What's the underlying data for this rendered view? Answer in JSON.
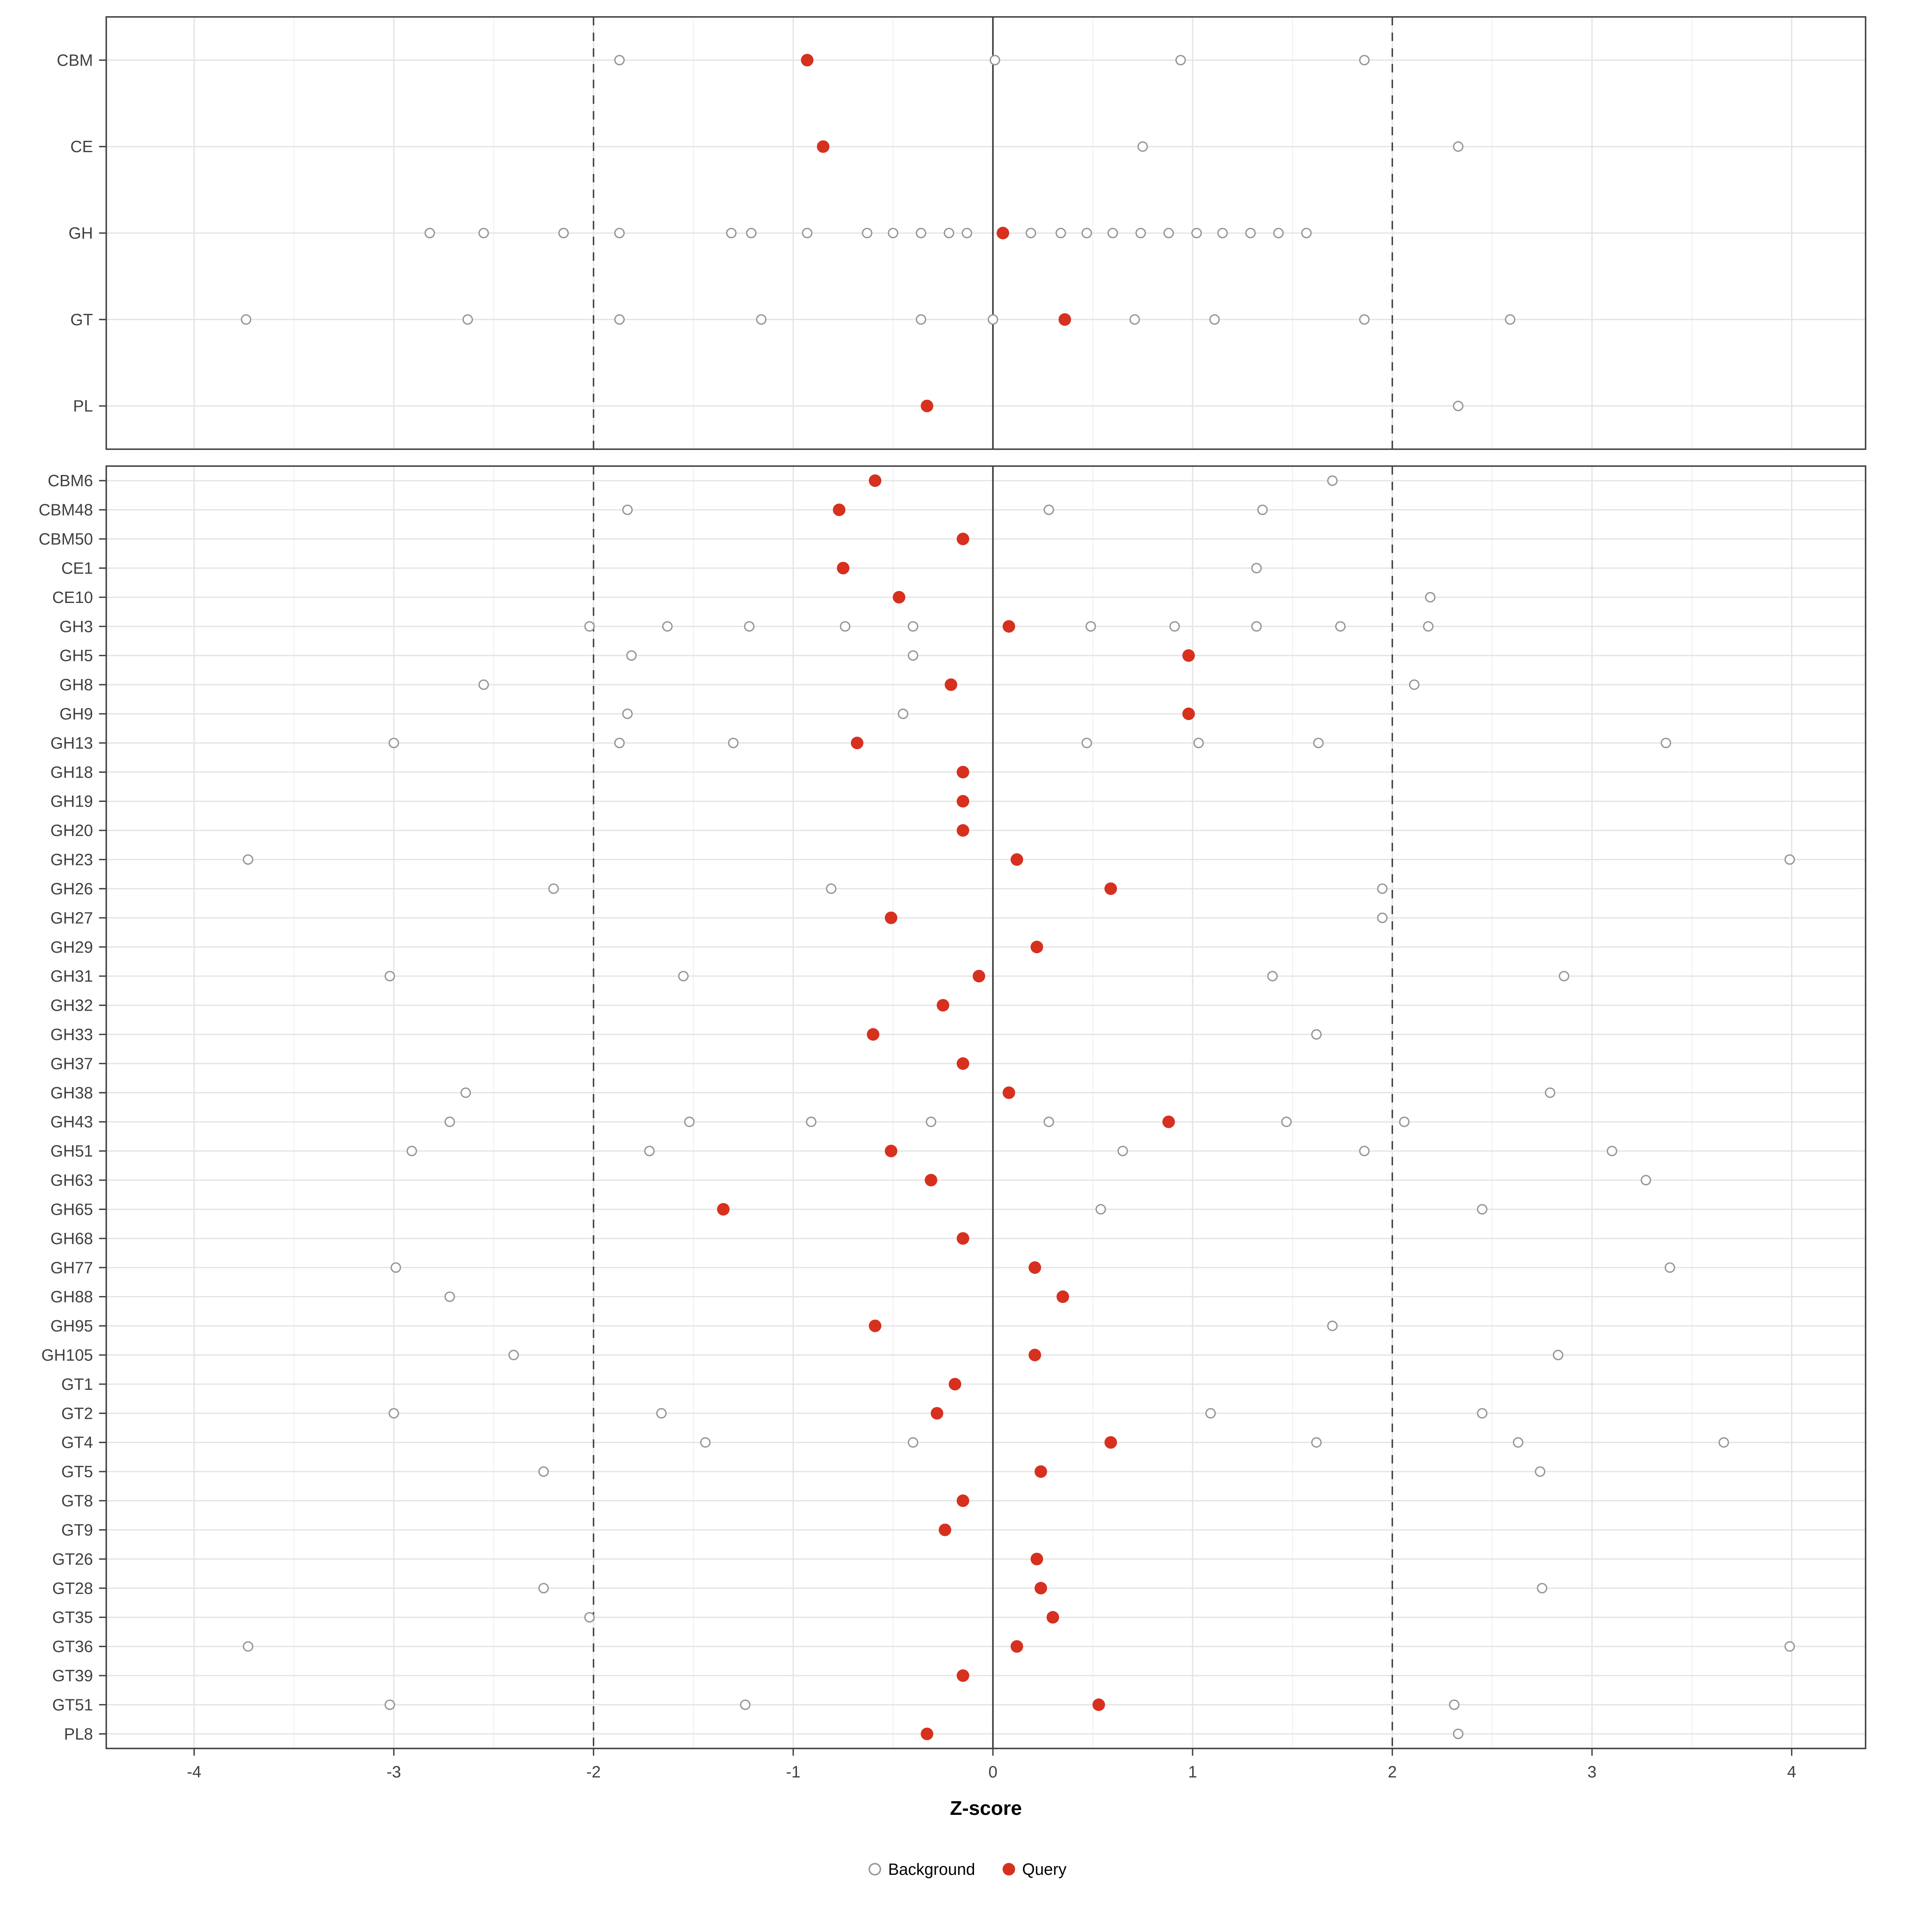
{
  "chart_data": {
    "type": "scatter",
    "title": "",
    "xlabel": "Z-score",
    "xlim": [
      -4.44,
      4.37
    ],
    "x_ticks": [
      -4,
      -3,
      -2,
      -1,
      0,
      1,
      2,
      3,
      4
    ],
    "vline_solid": 0,
    "vlines_dashed": [
      -2,
      2
    ],
    "legend": [
      {
        "label": "Background",
        "type": "open"
      },
      {
        "label": "Query",
        "type": "filled"
      }
    ],
    "colors": {
      "query": "#d7301f",
      "background_stroke": "#969696",
      "grid_major": "#e3e3e3",
      "grid_minor": "#f1f1f1",
      "panel_border": "#404040",
      "ref_line": "#3f3f3f",
      "tick_text": "#404040",
      "axis_title": "#000000"
    },
    "panels": [
      {
        "name": "top",
        "rows": [
          {
            "label": "CBM",
            "query": -0.93,
            "background": [
              -1.87,
              0.01,
              0.94,
              1.86
            ]
          },
          {
            "label": "CE",
            "query": -0.85,
            "background": [
              0.75,
              2.33
            ]
          },
          {
            "label": "GH",
            "query": 0.05,
            "background": [
              -2.82,
              -2.55,
              -2.15,
              -1.87,
              -1.31,
              -1.21,
              -0.93,
              -0.63,
              -0.5,
              -0.36,
              -0.22,
              -0.13,
              0.19,
              0.34,
              0.47,
              0.6,
              0.74,
              0.88,
              1.02,
              1.15,
              1.29,
              1.43,
              1.57
            ]
          },
          {
            "label": "GT",
            "query": 0.36,
            "background": [
              -3.74,
              -2.63,
              -1.87,
              -1.16,
              -0.36,
              0.0,
              0.71,
              1.11,
              1.86,
              2.59
            ]
          },
          {
            "label": "PL",
            "query": -0.33,
            "background": [
              2.33
            ]
          }
        ]
      },
      {
        "name": "bottom",
        "rows": [
          {
            "label": "CBM6",
            "query": -0.59,
            "background": [
              1.7
            ]
          },
          {
            "label": "CBM48",
            "query": -0.77,
            "background": [
              -1.83,
              0.28,
              1.35
            ]
          },
          {
            "label": "CBM50",
            "query": -0.15,
            "background": []
          },
          {
            "label": "CE1",
            "query": -0.75,
            "background": [
              1.32
            ]
          },
          {
            "label": "CE10",
            "query": -0.47,
            "background": [
              2.19
            ]
          },
          {
            "label": "GH3",
            "query": 0.08,
            "background": [
              -2.02,
              -1.63,
              -1.22,
              -0.74,
              -0.4,
              0.49,
              0.91,
              1.32,
              1.74,
              2.18
            ]
          },
          {
            "label": "GH5",
            "query": 0.98,
            "background": [
              -1.81,
              -0.4
            ]
          },
          {
            "label": "GH8",
            "query": -0.21,
            "background": [
              -2.55,
              2.11
            ]
          },
          {
            "label": "GH9",
            "query": 0.98,
            "background": [
              -1.83,
              -0.45
            ]
          },
          {
            "label": "GH13",
            "query": -0.68,
            "background": [
              -3.0,
              -1.87,
              -1.3,
              0.47,
              1.03,
              1.63,
              3.37
            ]
          },
          {
            "label": "GH18",
            "query": -0.15,
            "background": []
          },
          {
            "label": "GH19",
            "query": -0.15,
            "background": []
          },
          {
            "label": "GH20",
            "query": -0.15,
            "background": []
          },
          {
            "label": "GH23",
            "query": 0.12,
            "background": [
              -3.73,
              3.99
            ]
          },
          {
            "label": "GH26",
            "query": 0.59,
            "background": [
              -2.2,
              -0.81,
              1.95
            ]
          },
          {
            "label": "GH27",
            "query": -0.51,
            "background": [
              1.95
            ]
          },
          {
            "label": "GH29",
            "query": 0.22,
            "background": []
          },
          {
            "label": "GH31",
            "query": -0.07,
            "background": [
              -3.02,
              -1.55,
              1.4,
              2.86
            ]
          },
          {
            "label": "GH32",
            "query": -0.25,
            "background": []
          },
          {
            "label": "GH33",
            "query": -0.6,
            "background": [
              1.62
            ]
          },
          {
            "label": "GH37",
            "query": -0.15,
            "background": []
          },
          {
            "label": "GH38",
            "query": 0.08,
            "background": [
              -2.64,
              2.79
            ]
          },
          {
            "label": "GH43",
            "query": 0.88,
            "background": [
              -2.72,
              -1.52,
              -0.91,
              -0.31,
              0.28,
              1.47,
              2.06
            ]
          },
          {
            "label": "GH51",
            "query": -0.51,
            "background": [
              -2.91,
              -1.72,
              0.65,
              1.86,
              3.1
            ]
          },
          {
            "label": "GH63",
            "query": -0.31,
            "background": [
              3.27
            ]
          },
          {
            "label": "GH65",
            "query": -1.35,
            "background": [
              0.54,
              2.45
            ]
          },
          {
            "label": "GH68",
            "query": -0.15,
            "background": []
          },
          {
            "label": "GH77",
            "query": 0.21,
            "background": [
              -2.99,
              3.39
            ]
          },
          {
            "label": "GH88",
            "query": 0.35,
            "background": [
              -2.72
            ]
          },
          {
            "label": "GH95",
            "query": -0.59,
            "background": [
              1.7
            ]
          },
          {
            "label": "GH105",
            "query": 0.21,
            "background": [
              -2.4,
              2.83
            ]
          },
          {
            "label": "GT1",
            "query": -0.19,
            "background": []
          },
          {
            "label": "GT2",
            "query": -0.28,
            "background": [
              -3.0,
              -1.66,
              1.09,
              2.45
            ]
          },
          {
            "label": "GT4",
            "query": 0.59,
            "background": [
              -1.44,
              -0.4,
              1.62,
              2.63,
              3.66
            ]
          },
          {
            "label": "GT5",
            "query": 0.24,
            "background": [
              -2.25,
              2.74
            ]
          },
          {
            "label": "GT8",
            "query": -0.15,
            "background": []
          },
          {
            "label": "GT9",
            "query": -0.24,
            "background": []
          },
          {
            "label": "GT26",
            "query": 0.22,
            "background": []
          },
          {
            "label": "GT28",
            "query": 0.24,
            "background": [
              -2.25,
              2.75
            ]
          },
          {
            "label": "GT35",
            "query": 0.3,
            "background": [
              -2.02
            ]
          },
          {
            "label": "GT36",
            "query": 0.12,
            "background": [
              -3.73,
              3.99
            ]
          },
          {
            "label": "GT39",
            "query": -0.15,
            "background": []
          },
          {
            "label": "GT51",
            "query": 0.53,
            "background": [
              -3.02,
              -1.24,
              2.31
            ]
          },
          {
            "label": "PL8",
            "query": -0.33,
            "background": [
              2.33
            ]
          }
        ]
      }
    ]
  }
}
